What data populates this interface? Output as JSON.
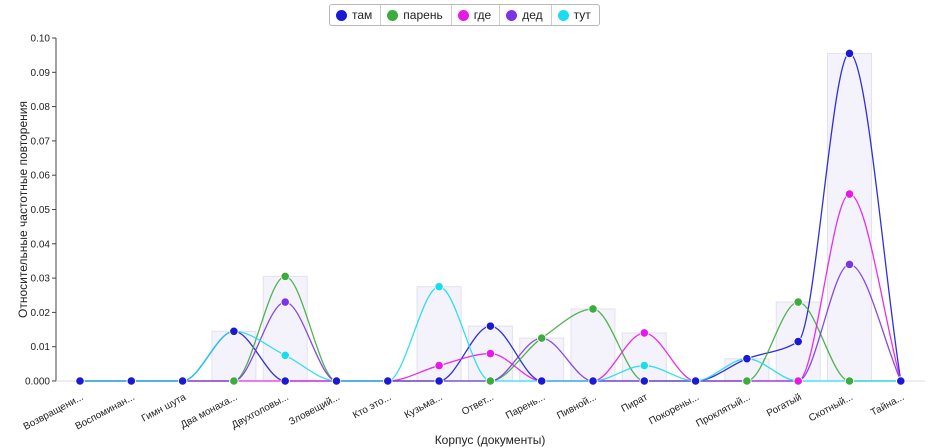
{
  "chart_data": {
    "type": "line",
    "xlabel": "Корпус (документы)",
    "ylabel": "Относительные частотные повторения",
    "ylim": [
      0,
      0.1
    ],
    "yticks": [
      "0.000",
      "0.01",
      "0.02",
      "0.03",
      "0.04",
      "0.05",
      "0.06",
      "0.07",
      "0.08",
      "0.09",
      "0.10"
    ],
    "categories": [
      "Возвращени...",
      "Воспоминан...",
      "Гимн шута",
      "Два монаха...",
      "Двухголовы...",
      "Зловещий...",
      "Кто это...",
      "Кузьма...",
      "Ответ...",
      "Парень...",
      "Пивной...",
      "Пират",
      "Покорены...",
      "Проклятый...",
      "Рогатый",
      "Скотный...",
      "Тайна..."
    ],
    "series": [
      {
        "name": "там",
        "color": "#1a1ad6",
        "values": [
          0,
          0,
          0,
          0.0145,
          0,
          0,
          0,
          0,
          0.016,
          0,
          0,
          0,
          0,
          0.0065,
          0.0115,
          0.0955,
          0
        ]
      },
      {
        "name": "парень",
        "color": "#3cac3c",
        "values": [
          0,
          0,
          0,
          0,
          0.0305,
          0,
          0,
          0,
          0,
          0.0125,
          0.021,
          0,
          0,
          0,
          0.023,
          0,
          0
        ]
      },
      {
        "name": "где",
        "color": "#e619e6",
        "values": [
          0,
          0,
          0,
          0,
          0,
          0,
          0,
          0.0045,
          0.008,
          0,
          0,
          0.014,
          0,
          0,
          0,
          0.0545,
          0
        ]
      },
      {
        "name": "дед",
        "color": "#7b35e6",
        "values": [
          0,
          0,
          0,
          0,
          0.023,
          0,
          0,
          0,
          0,
          0.0125,
          0,
          0,
          0,
          0,
          0,
          0.034,
          0
        ]
      },
      {
        "name": "тут",
        "color": "#1adcf0",
        "values": [
          0,
          0,
          0,
          0.0145,
          0.0075,
          0,
          0,
          0.0275,
          0,
          0,
          0,
          0.0045,
          0,
          0.0065,
          0,
          0,
          0
        ]
      }
    ]
  }
}
